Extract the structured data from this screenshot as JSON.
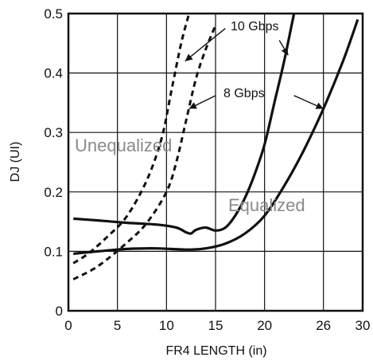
{
  "chart_data": {
    "type": "line",
    "title": "",
    "xlabel": "FR4 LENGTH (in)",
    "ylabel": "DJ (UI)",
    "xlim": [
      0,
      30
    ],
    "ylim": [
      0,
      0.5
    ],
    "x_ticks": [
      "0",
      "5",
      "10",
      "15",
      "20",
      "26",
      "30"
    ],
    "y_ticks": [
      "0",
      "0.1",
      "0.2",
      "0.3",
      "0.4",
      "0.5"
    ],
    "grid": true,
    "series": [
      {
        "group": "Unequalized",
        "rate": "10 Gbps",
        "style": "dashed",
        "x": [
          0.5,
          2,
          4,
          6,
          8,
          9.5,
          10.5,
          11.5,
          12.3
        ],
        "y": [
          0.08,
          0.096,
          0.125,
          0.16,
          0.22,
          0.29,
          0.37,
          0.45,
          0.5
        ]
      },
      {
        "group": "Unequalized",
        "rate": "8 Gbps",
        "style": "dashed",
        "x": [
          0.5,
          3,
          6,
          8,
          10,
          11,
          12,
          13,
          14,
          15
        ],
        "y": [
          0.053,
          0.075,
          0.115,
          0.148,
          0.2,
          0.25,
          0.32,
          0.39,
          0.44,
          0.48
        ]
      },
      {
        "group": "Equalized",
        "rate": "10 Gbps",
        "style": "solid",
        "x": [
          0.5,
          3,
          6,
          9,
          11,
          12,
          12.5,
          13,
          14,
          15,
          16,
          17,
          18,
          19,
          20,
          21,
          22,
          23
        ],
        "y": [
          0.155,
          0.152,
          0.148,
          0.145,
          0.14,
          0.132,
          0.13,
          0.136,
          0.14,
          0.135,
          0.14,
          0.16,
          0.19,
          0.23,
          0.28,
          0.35,
          0.42,
          0.5
        ]
      },
      {
        "group": "Equalized",
        "rate": "8 Gbps",
        "style": "solid",
        "x": [
          0.5,
          3,
          6,
          9,
          12,
          14,
          16,
          18,
          20,
          22,
          24,
          26,
          28,
          29.5
        ],
        "y": [
          0.096,
          0.1,
          0.104,
          0.105,
          0.103,
          0.105,
          0.113,
          0.13,
          0.16,
          0.21,
          0.27,
          0.34,
          0.42,
          0.49
        ]
      }
    ],
    "annotations": {
      "label_10gbps": "10 Gbps",
      "label_8gbps": "8 Gbps",
      "region_unequalized": "Unequalized",
      "region_equalized": "Equalized"
    }
  }
}
